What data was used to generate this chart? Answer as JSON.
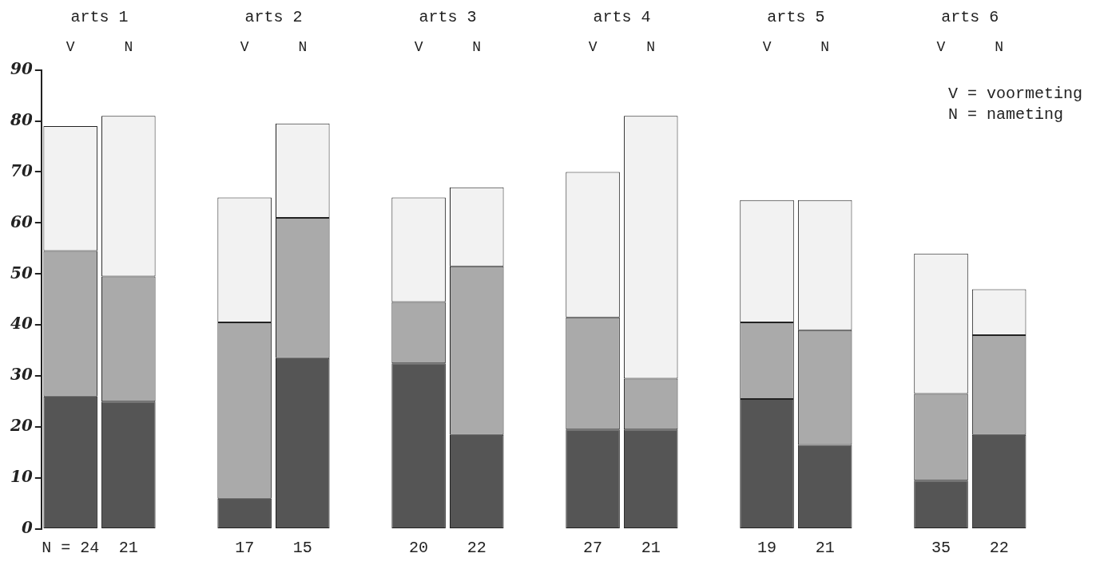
{
  "chart_data": {
    "type": "bar",
    "stacked": true,
    "grid": false,
    "categories": [
      "V",
      "N",
      null,
      "V",
      "N",
      null,
      "V",
      "N",
      null,
      "V",
      "N",
      null,
      "V",
      "N",
      null,
      "V",
      "N"
    ],
    "series": [
      {
        "color": "#555555",
        "values": [
          26,
          25,
          null,
          6,
          33.5,
          null,
          32.5,
          18.5,
          null,
          19.5,
          19.5,
          null,
          25.5,
          16.5,
          null,
          9.5,
          18.5
        ]
      },
      {
        "color": "#aaaaaa",
        "values": [
          28.5,
          24.5,
          null,
          34.5,
          27.5,
          null,
          12,
          33,
          null,
          22,
          10,
          null,
          15,
          22.5,
          null,
          17,
          19.5
        ]
      },
      {
        "color": "#f2f2f2",
        "values": [
          24.5,
          31.5,
          null,
          24.5,
          18.5,
          null,
          20.5,
          15.5,
          null,
          28.5,
          51.5,
          null,
          24,
          25.5,
          null,
          27.5,
          9
        ]
      }
    ],
    "ylim": [
      0,
      90
    ],
    "yticks": [
      0,
      10,
      20,
      30,
      40,
      50,
      60,
      70,
      80,
      90
    ],
    "annotations": [
      "arts 1",
      "arts 2",
      "arts 3",
      "arts 4",
      "arts 5",
      "arts 6",
      "N = 24",
      "21",
      "17",
      "15",
      "20",
      "22",
      "27",
      "21",
      "19",
      "21",
      "35",
      "22",
      "V = voormeting",
      "N = nameting"
    ]
  }
}
